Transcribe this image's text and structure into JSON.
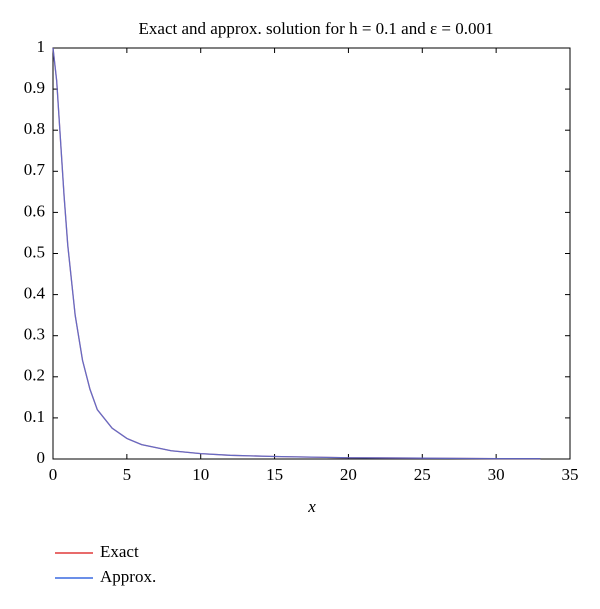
{
  "chart_data": {
    "type": "line",
    "title": "Exact and approx. solution for h = 0.1 and ε = 0.001",
    "x_label": "x",
    "x": [
      0,
      0.25,
      0.5,
      0.75,
      1,
      1.5,
      2,
      2.5,
      3,
      4,
      5,
      6,
      8,
      10,
      12,
      15,
      20,
      25,
      30,
      33
    ],
    "series": [
      {
        "name": "Exact",
        "color": "#e03a3a",
        "values": [
          1,
          0.92,
          0.78,
          0.64,
          0.52,
          0.35,
          0.24,
          0.17,
          0.12,
          0.075,
          0.05,
          0.035,
          0.02,
          0.013,
          0.009,
          0.006,
          0.003,
          0.002,
          0.001,
          0.001
        ]
      },
      {
        "name": "Approx.",
        "color": "#3a6ae0",
        "values": [
          1,
          0.92,
          0.78,
          0.64,
          0.52,
          0.35,
          0.24,
          0.17,
          0.12,
          0.075,
          0.05,
          0.035,
          0.02,
          0.013,
          0.009,
          0.006,
          0.003,
          0.002,
          0.001,
          0.001
        ]
      }
    ],
    "xlim": [
      0,
      35
    ],
    "xticks": [
      0,
      5,
      10,
      15,
      20,
      25,
      30,
      35
    ],
    "ylim": [
      0,
      1
    ],
    "yticks": [
      0,
      0.1,
      0.2,
      0.3,
      0.4,
      0.5,
      0.6,
      0.7,
      0.8,
      0.9,
      1
    ],
    "legend": "bottom-left"
  }
}
